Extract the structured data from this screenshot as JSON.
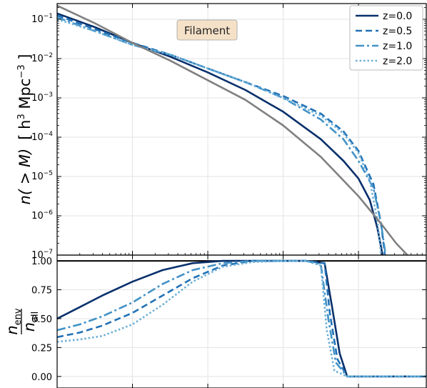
{
  "chart_data": [
    {
      "panel": "top",
      "type": "line",
      "annotation": "Filament",
      "ylabel_main": "n( > M)",
      "ylabel_unit_open": "[ h",
      "ylabel_unit_mid": " Mpc",
      "ylabel_unit_close": " ]",
      "ylabel_exp1": "3",
      "ylabel_exp2": "−3",
      "yscale": "log",
      "ylim_exp": [
        -7,
        -0.6
      ],
      "yticks": [
        {
          "base": "10",
          "exp": "−7",
          "v": -7
        },
        {
          "base": "10",
          "exp": "−6",
          "v": -6
        },
        {
          "base": "10",
          "exp": "−5",
          "v": -5
        },
        {
          "base": "10",
          "exp": "−4",
          "v": -4
        },
        {
          "base": "10",
          "exp": "−3",
          "v": -3
        },
        {
          "base": "10",
          "exp": "−2",
          "v": -2
        },
        {
          "base": "10",
          "exp": "−1",
          "v": -1
        }
      ],
      "xlim_log": [
        10,
        14.9
      ],
      "xscale": "log",
      "grid": true,
      "legend_position": "top-right",
      "series": [
        {
          "name": "z=0.0",
          "color": "#08306b",
          "dash": "solid",
          "x": [
            10.0,
            10.5,
            11.0,
            11.5,
            12.0,
            12.5,
            13.0,
            13.5,
            13.8,
            14.0,
            14.15,
            14.25,
            14.32
          ],
          "y": [
            -0.85,
            -1.2,
            -1.6,
            -1.95,
            -2.35,
            -2.8,
            -3.35,
            -4.05,
            -4.6,
            -5.05,
            -5.6,
            -6.3,
            -7.0
          ]
        },
        {
          "name": "z=0.5",
          "color": "#2171b5",
          "dash": "dashed",
          "x": [
            10.0,
            10.5,
            11.0,
            11.5,
            12.0,
            12.5,
            13.0,
            13.5,
            13.8,
            14.0,
            14.2,
            14.3,
            14.35
          ],
          "y": [
            -0.9,
            -1.25,
            -1.6,
            -1.9,
            -2.25,
            -2.6,
            -2.95,
            -3.4,
            -3.85,
            -4.35,
            -5.2,
            -6.2,
            -7.0
          ]
        },
        {
          "name": "z=1.0",
          "color": "#4292c6",
          "dash": "dashdot",
          "x": [
            10.0,
            10.5,
            11.0,
            11.5,
            12.0,
            12.5,
            13.0,
            13.5,
            13.8,
            14.0,
            14.2,
            14.3,
            14.36
          ],
          "y": [
            -0.95,
            -1.3,
            -1.65,
            -1.9,
            -2.25,
            -2.6,
            -3.0,
            -3.55,
            -4.05,
            -4.6,
            -5.3,
            -6.2,
            -7.0
          ]
        },
        {
          "name": "z=2.0",
          "color": "#6baed6",
          "dash": "dotted",
          "x": [
            10.0,
            10.5,
            11.0,
            11.5,
            12.0,
            12.5,
            13.0,
            13.5,
            13.8,
            14.0,
            14.15,
            14.25,
            14.3
          ],
          "y": [
            -1.0,
            -1.3,
            -1.65,
            -1.9,
            -2.25,
            -2.6,
            -3.0,
            -3.45,
            -3.9,
            -4.4,
            -5.1,
            -6.1,
            -7.0
          ]
        },
        {
          "name": "",
          "color": "#808080",
          "dash": "solid",
          "x": [
            10.0,
            10.5,
            11.0,
            11.5,
            12.0,
            12.5,
            13.0,
            13.5,
            14.0,
            14.3,
            14.5,
            14.65
          ],
          "y": [
            -0.65,
            -1.1,
            -1.6,
            -2.05,
            -2.55,
            -3.05,
            -3.7,
            -4.5,
            -5.5,
            -6.2,
            -6.7,
            -7.0
          ]
        }
      ]
    },
    {
      "panel": "bottom",
      "type": "line",
      "ylabel_num": "n",
      "ylabel_num_sub": "env",
      "ylabel_den": "n",
      "ylabel_den_sub": "all",
      "ylim": [
        -0.1,
        1.05
      ],
      "yticks": [
        "0.00",
        "0.25",
        "0.50",
        "0.75",
        "1.00"
      ],
      "xlim_log": [
        10,
        14.9
      ],
      "xscale": "log",
      "grid": true,
      "reference_line": 1.0,
      "series": [
        {
          "name": "z=0.0",
          "color": "#08306b",
          "dash": "solid",
          "x": [
            10.0,
            10.3,
            10.6,
            11.0,
            11.4,
            11.8,
            12.2,
            12.6,
            13.0,
            13.3,
            13.55,
            13.65,
            13.75,
            13.85,
            14.0,
            14.9
          ],
          "y": [
            0.5,
            0.6,
            0.7,
            0.82,
            0.92,
            0.98,
            1.0,
            1.0,
            1.0,
            1.0,
            0.98,
            0.6,
            0.2,
            0.0,
            0.0,
            0.0
          ]
        },
        {
          "name": "z=0.5",
          "color": "#2171b5",
          "dash": "dashed",
          "x": [
            10.0,
            10.3,
            10.6,
            11.0,
            11.4,
            11.8,
            12.2,
            12.6,
            13.0,
            13.3,
            13.55,
            13.62,
            13.72,
            13.85,
            14.0,
            14.9
          ],
          "y": [
            0.34,
            0.38,
            0.44,
            0.55,
            0.7,
            0.85,
            0.96,
            1.0,
            1.0,
            1.0,
            0.98,
            0.55,
            0.15,
            0.0,
            0.0,
            0.0
          ]
        },
        {
          "name": "z=1.0",
          "color": "#4292c6",
          "dash": "dashdot",
          "x": [
            10.0,
            10.3,
            10.6,
            11.0,
            11.4,
            11.8,
            12.2,
            12.6,
            13.0,
            13.3,
            13.5,
            13.6,
            13.7,
            13.85,
            14.0,
            14.9
          ],
          "y": [
            0.4,
            0.45,
            0.52,
            0.64,
            0.8,
            0.92,
            0.98,
            1.0,
            1.0,
            1.0,
            0.97,
            0.5,
            0.12,
            0.0,
            0.0,
            0.0
          ]
        },
        {
          "name": "z=2.0",
          "color": "#6baed6",
          "dash": "dotted",
          "x": [
            10.0,
            10.3,
            10.6,
            11.0,
            11.4,
            11.8,
            12.2,
            12.6,
            13.0,
            13.3,
            13.5,
            13.58,
            13.68,
            13.85,
            14.0,
            14.9
          ],
          "y": [
            0.3,
            0.32,
            0.35,
            0.45,
            0.62,
            0.82,
            0.95,
            0.99,
            1.0,
            1.0,
            0.96,
            0.4,
            0.05,
            0.0,
            0.0,
            0.0
          ]
        }
      ]
    }
  ]
}
